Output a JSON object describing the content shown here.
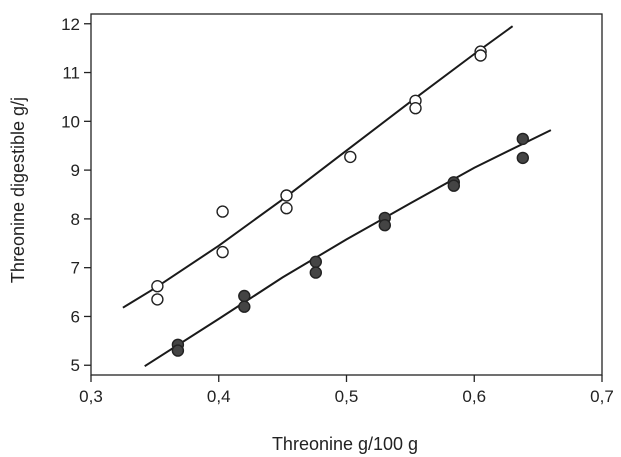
{
  "chart_data": {
    "type": "scatter",
    "title": "",
    "xlabel": "Threonine g/100 g",
    "ylabel": "Threonine digestible g/j",
    "xlim": [
      0.3,
      0.7
    ],
    "ylim": [
      4.8,
      12.2
    ],
    "x_ticks": [
      {
        "value": 0.3,
        "label": "0,3"
      },
      {
        "value": 0.4,
        "label": "0,4"
      },
      {
        "value": 0.5,
        "label": "0,5"
      },
      {
        "value": 0.6,
        "label": "0,6"
      },
      {
        "value": 0.7,
        "label": "0,7"
      }
    ],
    "y_ticks": [
      {
        "value": 5,
        "label": "5"
      },
      {
        "value": 6,
        "label": "6"
      },
      {
        "value": 7,
        "label": "7"
      },
      {
        "value": 8,
        "label": "8"
      },
      {
        "value": 9,
        "label": "9"
      },
      {
        "value": 10,
        "label": "10"
      },
      {
        "value": 11,
        "label": "11"
      },
      {
        "value": 12,
        "label": "12"
      }
    ],
    "grid": false,
    "legend": "none",
    "series": [
      {
        "marker": "open-circle",
        "color": "#222222",
        "points": [
          [
            0.352,
            6.62
          ],
          [
            0.352,
            6.35
          ],
          [
            0.403,
            8.15
          ],
          [
            0.403,
            7.32
          ],
          [
            0.453,
            8.48
          ],
          [
            0.453,
            8.22
          ],
          [
            0.503,
            9.27
          ],
          [
            0.554,
            10.42
          ],
          [
            0.554,
            10.27
          ],
          [
            0.605,
            11.43
          ],
          [
            0.605,
            11.35
          ]
        ],
        "fit": [
          [
            0.325,
            6.18
          ],
          [
            0.35,
            6.58
          ],
          [
            0.4,
            7.45
          ],
          [
            0.45,
            8.4
          ],
          [
            0.5,
            9.4
          ],
          [
            0.55,
            10.4
          ],
          [
            0.6,
            11.38
          ],
          [
            0.63,
            11.95
          ]
        ]
      },
      {
        "marker": "filled-circle",
        "color": "#444444",
        "points": [
          [
            0.368,
            5.42
          ],
          [
            0.368,
            5.3
          ],
          [
            0.42,
            6.42
          ],
          [
            0.42,
            6.2
          ],
          [
            0.476,
            7.12
          ],
          [
            0.476,
            6.9
          ],
          [
            0.53,
            8.02
          ],
          [
            0.53,
            7.87
          ],
          [
            0.584,
            8.75
          ],
          [
            0.584,
            8.68
          ],
          [
            0.638,
            9.64
          ],
          [
            0.638,
            9.25
          ]
        ],
        "fit": [
          [
            0.342,
            4.98
          ],
          [
            0.4,
            5.95
          ],
          [
            0.45,
            6.8
          ],
          [
            0.5,
            7.58
          ],
          [
            0.55,
            8.32
          ],
          [
            0.6,
            9.05
          ],
          [
            0.66,
            9.82
          ]
        ]
      }
    ]
  }
}
